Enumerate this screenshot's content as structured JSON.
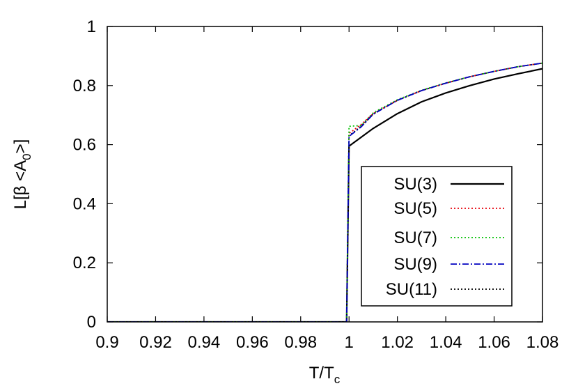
{
  "chart_data": {
    "type": "line",
    "title": "",
    "xlabel": {
      "main": "T/T",
      "sub": "c"
    },
    "ylabel": {
      "prefix": "L[β <A",
      "sub": "0",
      "suffix": ">]"
    },
    "xlim": [
      0.9,
      1.08
    ],
    "ylim": [
      0,
      1
    ],
    "xticks": [
      "0.9",
      "0.92",
      "0.94",
      "0.96",
      "0.98",
      "1",
      "1.02",
      "1.04",
      "1.06",
      "1.08"
    ],
    "yticks": [
      "0",
      "0.2",
      "0.4",
      "0.6",
      "0.8",
      "1"
    ],
    "grid": false,
    "legend_position": "bottom-right",
    "series": [
      {
        "name": "SU(3)",
        "color": "#000000",
        "style": "solid",
        "x": [
          0.9,
          0.999,
          1.0,
          1.005,
          1.01,
          1.02,
          1.03,
          1.04,
          1.05,
          1.06,
          1.07,
          1.08
        ],
        "y": [
          0,
          0,
          0.595,
          0.625,
          0.655,
          0.705,
          0.745,
          0.775,
          0.8,
          0.822,
          0.84,
          0.857
        ]
      },
      {
        "name": "SU(5)",
        "color": "#e8000b",
        "style": "dotted",
        "x": [
          0.9,
          0.999,
          1.0,
          1.005,
          1.01,
          1.02,
          1.03,
          1.04,
          1.05,
          1.06,
          1.07,
          1.08
        ],
        "y": [
          0,
          0,
          0.638,
          0.668,
          0.705,
          0.75,
          0.783,
          0.808,
          0.83,
          0.848,
          0.864,
          0.876
        ]
      },
      {
        "name": "SU(7)",
        "color": "#00c000",
        "style": "dotted",
        "x": [
          0.9,
          0.999,
          1.0,
          1.005,
          1.01,
          1.02,
          1.03,
          1.04,
          1.05,
          1.06,
          1.07,
          1.08
        ],
        "y": [
          0,
          0,
          0.662,
          0.665,
          0.708,
          0.752,
          0.784,
          0.809,
          0.83,
          0.848,
          0.864,
          0.876
        ]
      },
      {
        "name": "SU(9)",
        "color": "#0000c0",
        "style": "dashdot",
        "x": [
          0.9,
          0.999,
          1.0,
          1.005,
          1.01,
          1.02,
          1.03,
          1.04,
          1.05,
          1.06,
          1.07,
          1.08
        ],
        "y": [
          0,
          0,
          0.628,
          0.66,
          0.703,
          0.75,
          0.783,
          0.808,
          0.83,
          0.848,
          0.864,
          0.876
        ]
      },
      {
        "name": "SU(11)",
        "color": "#000000",
        "style": "dotted",
        "x": [
          0.9,
          0.999,
          1.0,
          1.005,
          1.01,
          1.02,
          1.03,
          1.04,
          1.05,
          1.06,
          1.07,
          1.08
        ],
        "y": [
          0,
          0,
          0.63,
          0.662,
          0.704,
          0.75,
          0.783,
          0.808,
          0.83,
          0.848,
          0.864,
          0.876
        ]
      }
    ]
  }
}
